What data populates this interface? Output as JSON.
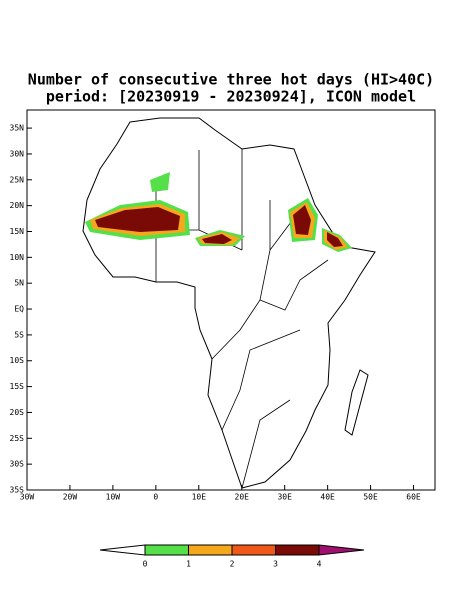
{
  "title": [
    "Number of consecutive three hot days (HI>40C)",
    "period: [20230919 - 20230924], ICON model"
  ],
  "map": {
    "xlim": [
      -30,
      65
    ],
    "ylim": [
      -35,
      38.5
    ],
    "xticks": [
      {
        "value": -30,
        "label": "30W"
      },
      {
        "value": -20,
        "label": "20W"
      },
      {
        "value": -10,
        "label": "10W"
      },
      0,
      {
        "value": 10,
        "label": "10E"
      },
      {
        "value": 20,
        "label": "20E"
      },
      {
        "value": 30,
        "label": "30E"
      },
      {
        "value": 40,
        "label": "40E"
      },
      {
        "value": 50,
        "label": "50E"
      },
      {
        "value": 60,
        "label": "60E"
      }
    ],
    "yticks": [
      {
        "value": 35,
        "label": "35N"
      },
      {
        "value": 30,
        "label": "30N"
      },
      {
        "value": 25,
        "label": "25N"
      },
      {
        "value": 20,
        "label": "20N"
      },
      {
        "value": 15,
        "label": "15N"
      },
      {
        "value": 10,
        "label": "10N"
      },
      {
        "value": 5,
        "label": "5N"
      },
      {
        "value": 0,
        "label": "EQ"
      },
      {
        "value": -5,
        "label": "5S"
      },
      {
        "value": -10,
        "label": "10S"
      },
      {
        "value": -15,
        "label": "15S"
      },
      {
        "value": -20,
        "label": "20S"
      },
      {
        "value": -25,
        "label": "25S"
      },
      {
        "value": -30,
        "label": "30S"
      },
      {
        "value": -35,
        "label": "35S"
      }
    ]
  },
  "colorbar": {
    "ticks": [
      0,
      1,
      2,
      3,
      4
    ],
    "colors": [
      "#ffffff",
      "#55e04a",
      "#f5a81c",
      "#f0581a",
      "#7a0a05",
      "#a01070"
    ]
  }
}
